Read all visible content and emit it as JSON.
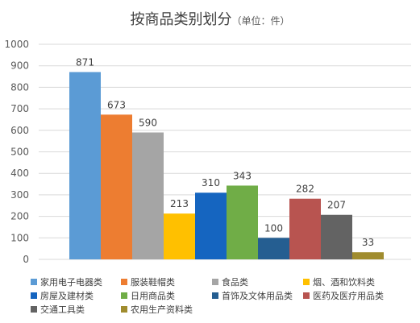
{
  "chart_data": {
    "type": "bar",
    "title": "按商品类别划分",
    "subtitle": "（单位：件）",
    "categories": [
      "家用电子电器类",
      "服装鞋帽类",
      "食品类",
      "烟、酒和饮料类",
      "房屋及建材类",
      "日用商品类",
      "首饰及文体用品类",
      "医药及医疗用品类",
      "交通工具类",
      "农用生产资料类"
    ],
    "values": [
      871,
      673,
      590,
      213,
      310,
      343,
      100,
      282,
      207,
      33
    ],
    "colors": [
      "#5B9BD5",
      "#ED7D31",
      "#A5A5A5",
      "#FFC000",
      "#1565C0",
      "#70AD47",
      "#255E91",
      "#B85450",
      "#636363",
      "#A08C2E"
    ],
    "ylim": [
      0,
      1000
    ],
    "yticks": [
      0,
      100,
      200,
      300,
      400,
      500,
      600,
      700,
      800,
      900,
      1000
    ],
    "grid": true,
    "legend_position": "bottom"
  }
}
